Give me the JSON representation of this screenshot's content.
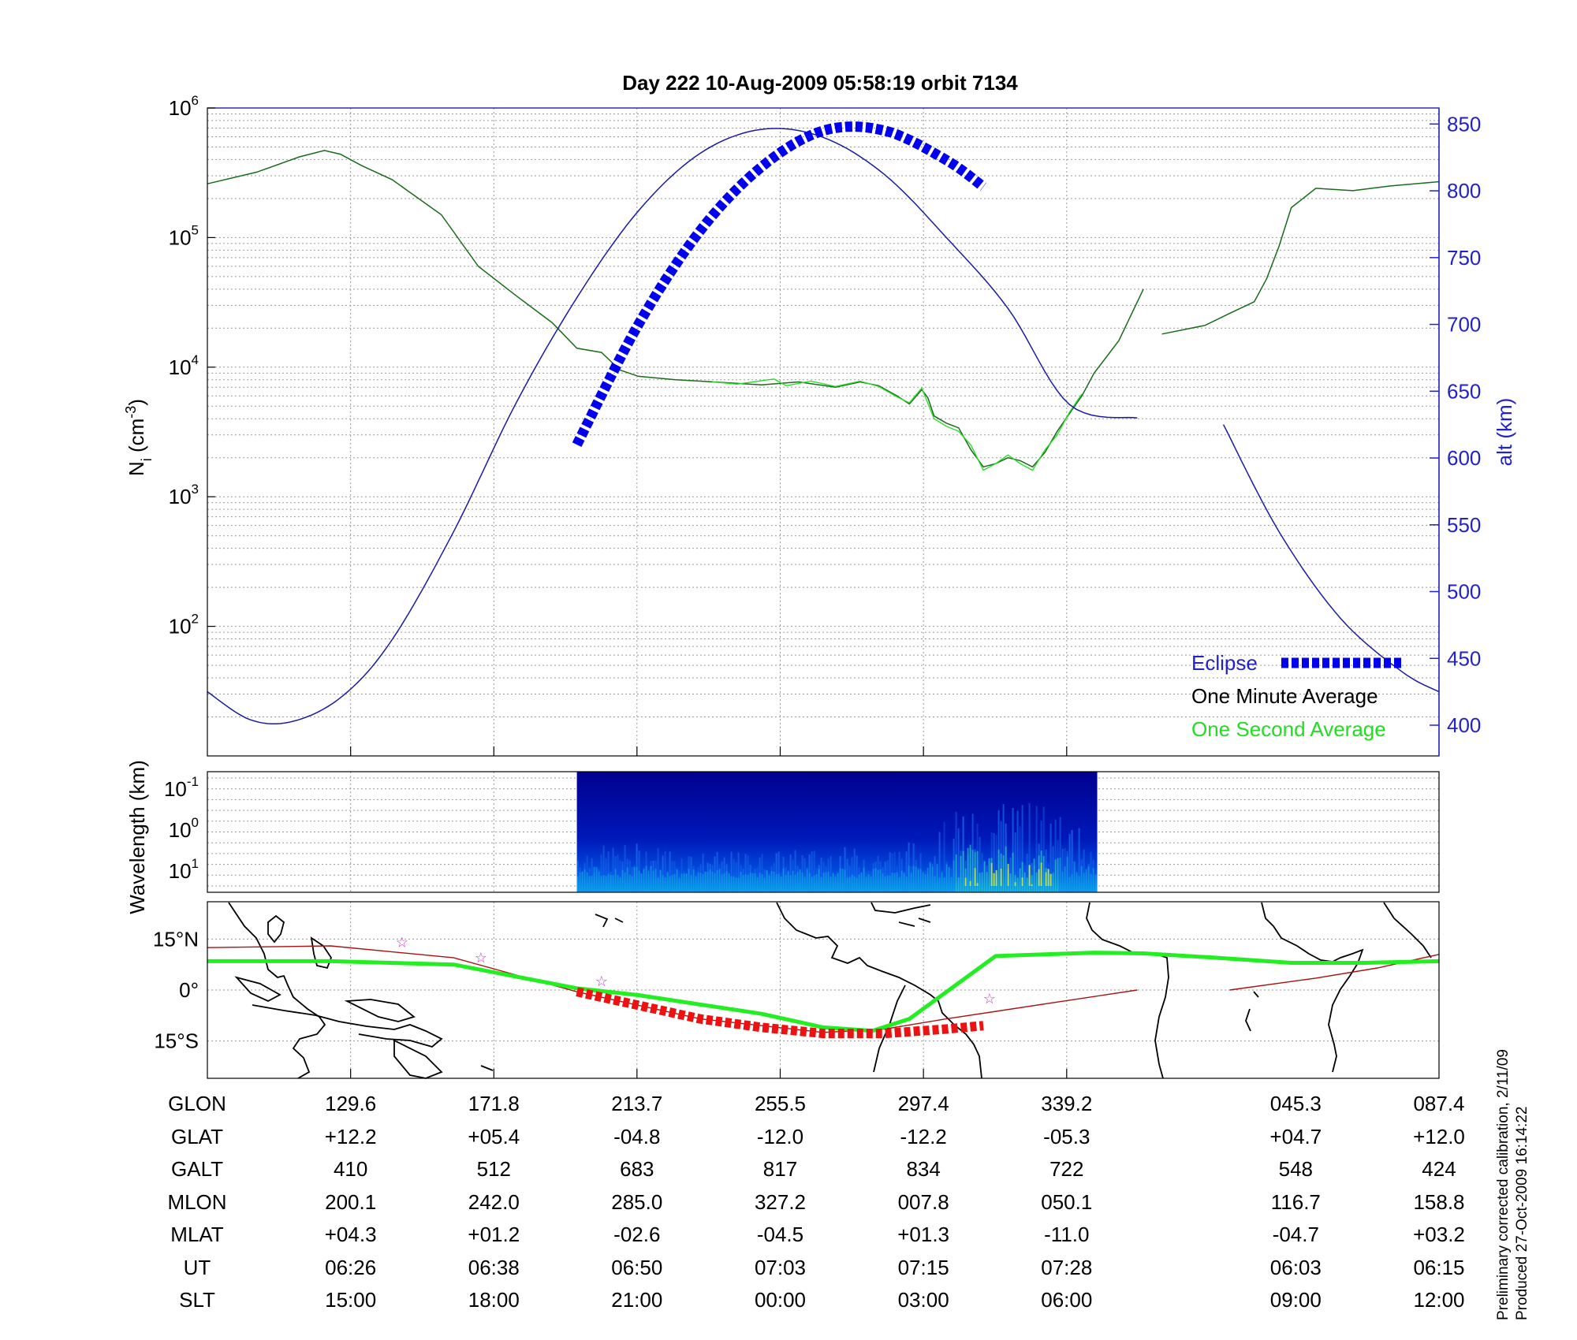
{
  "title": "Day 222  10-Aug-2009 05:58:19   orbit 7134",
  "footnotes": [
    "Preliminary corrected calibration, 2/11/09",
    "Produced 27-Oct-2009 16:14:22"
  ],
  "colors": {
    "alt": "#1a1aaa",
    "eclipse": "#0000ee",
    "one_minute": "#1a6b1a",
    "one_second": "#22dd22",
    "path": "#ee1111",
    "track": "#aa1111",
    "stars": "#cc33cc",
    "equator": "#22ee22"
  },
  "chart_data": [
    {
      "type": "line",
      "panel": "density",
      "xlabel": "",
      "ylabel_left": "Ni (cm-3)",
      "ylabel_right": "alt (km)",
      "yscale_left": "log",
      "ylim_left": [
        10,
        1000000
      ],
      "y_ticks_left": [
        {
          "base": "10",
          "exp": "2",
          "value": 100
        },
        {
          "base": "10",
          "exp": "3",
          "value": 1000
        },
        {
          "base": "10",
          "exp": "4",
          "value": 10000
        },
        {
          "base": "10",
          "exp": "5",
          "value": 100000
        },
        {
          "base": "10",
          "exp": "6",
          "value": 1000000
        }
      ],
      "ylim_right": [
        377,
        862
      ],
      "y_ticks_right": [
        "400",
        "450",
        "500",
        "550",
        "600",
        "650",
        "700",
        "750",
        "800",
        "850"
      ],
      "x_range": [
        0,
        1
      ],
      "x_ticks": [
        0.1163,
        0.2326,
        0.3488,
        0.4651,
        0.5814,
        0.6977
      ],
      "grid": true,
      "legend_position": "bottom-right",
      "legend": [
        {
          "label": "Eclipse",
          "color": "#0000ee",
          "style": "dashed-thick"
        },
        {
          "label": "One Minute Average",
          "color": "#000000",
          "style": "none"
        },
        {
          "label": "One Second Average",
          "color": "#22dd22",
          "style": "none"
        }
      ],
      "series": [
        {
          "name": "One Minute Average",
          "axis": "left",
          "x": [
            0.0,
            0.04,
            0.075,
            0.095,
            0.108,
            0.125,
            0.15,
            0.19,
            0.22,
            0.25,
            0.28,
            0.3,
            0.32,
            0.335,
            0.35,
            0.38,
            0.42,
            0.45,
            0.48,
            0.51,
            0.53,
            0.545,
            0.56,
            0.57,
            0.58,
            0.585,
            0.59,
            0.6,
            0.61,
            0.62,
            0.63,
            0.64,
            0.65,
            0.66,
            0.67,
            0.68,
            0.69,
            0.7,
            0.71,
            0.72,
            0.74,
            0.76,
            0.755,
            0.775,
            0.81,
            0.83,
            0.85,
            0.86,
            0.87,
            0.88,
            0.9,
            0.93,
            0.96,
            1.0
          ],
          "y": [
            260000,
            320000,
            420000,
            470000,
            440000,
            360000,
            280000,
            150000,
            60000,
            36000,
            22000,
            14000,
            13000,
            9500,
            8500,
            8000,
            7600,
            7300,
            7700,
            7000,
            7700,
            7200,
            6000,
            5200,
            6700,
            5800,
            4200,
            3700,
            3400,
            2300,
            1700,
            1800,
            2000,
            1900,
            1700,
            2200,
            3200,
            4400,
            6000,
            9000,
            16000,
            40000,
            null,
            18000,
            21000,
            26000,
            32000,
            48000,
            85000,
            170000,
            240000,
            230000,
            250000,
            270000
          ]
        },
        {
          "name": "One Second Average",
          "axis": "left",
          "x": [
            0.41,
            0.43,
            0.46,
            0.47,
            0.49,
            0.51,
            0.53,
            0.545,
            0.56,
            0.57,
            0.58,
            0.59,
            0.6,
            0.61,
            0.62,
            0.63,
            0.64,
            0.65,
            0.66,
            0.67,
            0.68,
            0.69,
            0.7,
            0.71
          ],
          "y": [
            7700,
            7400,
            8100,
            7200,
            7800,
            7100,
            7800,
            7100,
            5900,
            5300,
            6900,
            4000,
            3500,
            3200,
            2500,
            1600,
            1800,
            2100,
            1800,
            1600,
            2300,
            3000,
            4500,
            6200
          ]
        },
        {
          "name": "alt",
          "axis": "right",
          "x": [
            0.0,
            0.035,
            0.07,
            0.11,
            0.15,
            0.2,
            0.25,
            0.3,
            0.35,
            0.4,
            0.45,
            0.5,
            0.55,
            0.6,
            0.65,
            0.7,
            0.755,
            null,
            0.825,
            0.87,
            0.92,
            0.97,
            1.0
          ],
          "y": [
            425,
            404,
            403,
            422,
            464,
            545,
            640,
            720,
            785,
            828,
            846,
            840,
            812,
            765,
            712,
            640,
            630,
            null,
            625,
            545,
            480,
            440,
            425
          ]
        },
        {
          "name": "Eclipse",
          "axis": "right",
          "x": [
            0.3,
            0.35,
            0.4,
            0.45,
            0.5,
            0.55,
            0.6,
            0.63
          ],
          "y": [
            610,
            700,
            770,
            818,
            845,
            845,
            823,
            803
          ]
        }
      ]
    },
    {
      "type": "heatmap",
      "panel": "spectrogram",
      "ylabel": "Wavelength (km)",
      "y_ticks": [
        {
          "base": "10",
          "exp": "-1"
        },
        {
          "base": "10",
          "exp": "0"
        },
        {
          "base": "10",
          "exp": "1"
        }
      ],
      "x_extent": [
        0.3,
        0.7225
      ],
      "colormap": "jet",
      "intensity_profile": {
        "x": [
          0.3,
          0.35,
          0.4,
          0.45,
          0.5,
          0.55,
          0.58,
          0.6,
          0.62,
          0.64,
          0.66,
          0.68,
          0.7,
          0.7225
        ],
        "level": [
          0.3,
          0.35,
          0.25,
          0.25,
          0.3,
          0.3,
          0.4,
          0.6,
          0.95,
          0.9,
          0.85,
          0.8,
          0.6,
          0.4
        ]
      }
    },
    {
      "type": "map",
      "panel": "ground-track",
      "y_ticks": [
        "15°N",
        "0°",
        "15°S"
      ],
      "lat_range": [
        -26,
        26
      ],
      "equator_line": {
        "x": [
          0.0,
          0.1,
          0.2,
          0.3,
          0.35,
          0.45,
          0.5,
          0.54,
          0.57,
          0.64,
          0.72,
          0.76,
          0.82,
          0.88,
          0.94,
          1.0
        ],
        "lat": [
          8.5,
          8.5,
          7.5,
          0.5,
          -1.5,
          -7,
          -11,
          -12,
          -8.5,
          10,
          11,
          10.8,
          9.5,
          8,
          8,
          8.5
        ]
      },
      "track": {
        "x": [
          0.0,
          0.1,
          0.2,
          0.3,
          0.4,
          0.5,
          0.55,
          0.6,
          0.7,
          0.755,
          null,
          0.83,
          0.9,
          0.95,
          1.0
        ],
        "lat": [
          12.5,
          13,
          9.5,
          -0.5,
          -8.5,
          -12.5,
          -11.5,
          -8.5,
          -3,
          0,
          null,
          0,
          3.5,
          6.5,
          10.5
        ]
      },
      "eclipse_track": {
        "x": [
          0.3,
          0.35,
          0.4,
          0.45,
          0.5,
          0.55,
          0.6,
          0.63
        ],
        "lat": [
          -0.5,
          -4.5,
          -8.5,
          -11,
          -12.8,
          -12.8,
          -11.5,
          -10.5
        ]
      },
      "stars": {
        "x": [
          0.158,
          0.222,
          0.32,
          0.635
        ],
        "lat": [
          14,
          9.5,
          2.5,
          -2.5
        ]
      }
    }
  ],
  "pass_table": {
    "columns_x": [
      0.1163,
      0.2326,
      0.3488,
      0.4651,
      0.5814,
      0.6977,
      0.8837,
      1.0
    ],
    "rows": [
      {
        "label": "GLON",
        "values": [
          "129.6",
          "171.8",
          "213.7",
          "255.5",
          "297.4",
          "339.2",
          "045.3",
          "087.4"
        ]
      },
      {
        "label": "GLAT",
        "values": [
          "+12.2",
          "+05.4",
          "-04.8",
          "-12.0",
          "-12.2",
          "-05.3",
          "+04.7",
          "+12.0"
        ]
      },
      {
        "label": "GALT",
        "values": [
          "410",
          "512",
          "683",
          "817",
          "834",
          "722",
          "548",
          "424"
        ]
      },
      {
        "label": "MLON",
        "values": [
          "200.1",
          "242.0",
          "285.0",
          "327.2",
          "007.8",
          "050.1",
          "116.7",
          "158.8"
        ]
      },
      {
        "label": "MLAT",
        "values": [
          "+04.3",
          "+01.2",
          "-02.6",
          "-04.5",
          "+01.3",
          "-11.0",
          "-04.7",
          "+03.2"
        ]
      },
      {
        "label": "UT",
        "values": [
          "06:26",
          "06:38",
          "06:50",
          "07:03",
          "07:15",
          "07:28",
          "06:03",
          "06:15"
        ]
      },
      {
        "label": "SLT",
        "values": [
          "15:00",
          "18:00",
          "21:00",
          "00:00",
          "03:00",
          "06:00",
          "09:00",
          "12:00"
        ]
      }
    ]
  }
}
